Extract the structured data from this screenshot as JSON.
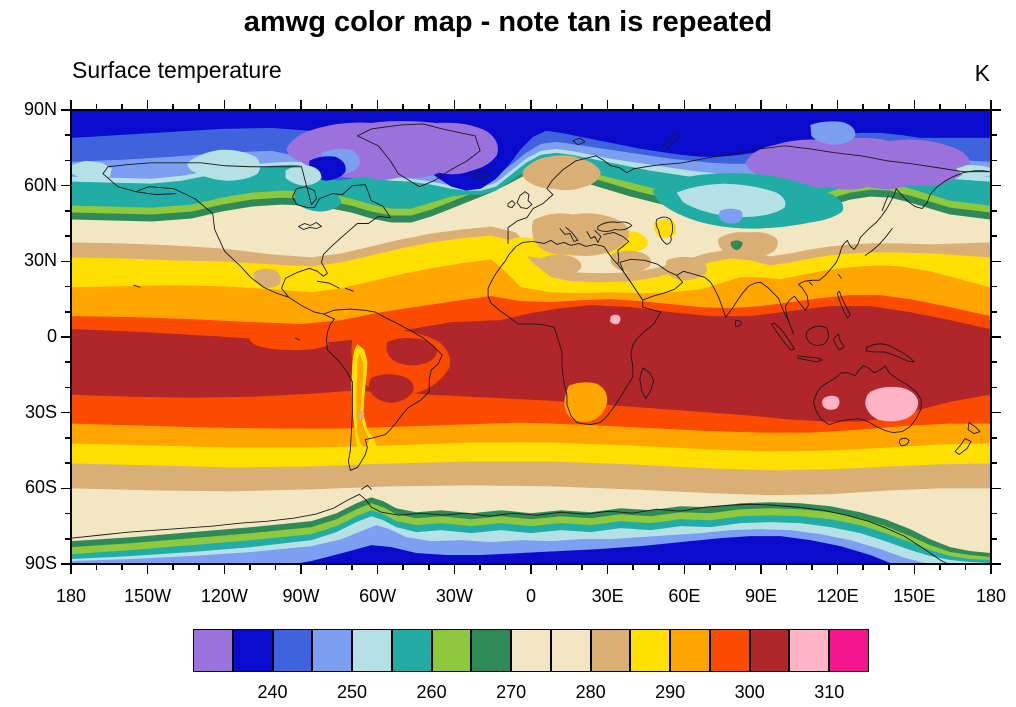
{
  "title": "amwg color map - note tan is repeated",
  "field_label": "Surface temperature",
  "units_label": "K",
  "chart_data": {
    "type": "heatmap",
    "subtype": "filled-contour world map (cylindrical equidistant, NCL style)",
    "title": "amwg color map - note tan is repeated",
    "field_label": "Surface temperature",
    "units": "K",
    "grid": "off",
    "x_axis": {
      "label_ticks": [
        "180",
        "150W",
        "120W",
        "90W",
        "60W",
        "30W",
        "0",
        "30E",
        "60E",
        "90E",
        "120E",
        "150E",
        "180"
      ],
      "major_interval_deg": 30,
      "minor_interval_deg": 10,
      "range_deg": [
        -180,
        180
      ]
    },
    "y_axis": {
      "label_ticks": [
        "90N",
        "60N",
        "30N",
        "0",
        "30S",
        "60S",
        "90S"
      ],
      "major_interval_deg": 30,
      "minor_interval_deg": 10,
      "range_deg": [
        -90,
        90
      ]
    },
    "colorbar": {
      "position": "bottom",
      "n_boxes": 17,
      "colors": [
        "#9B72DC",
        "#0B0BCE",
        "#3E63DD",
        "#7C9FF1",
        "#B5E1E6",
        "#21ACA5",
        "#8EC83C",
        "#2E8B57",
        "#F3E7C3",
        "#F3E7C3",
        "#D9AF76",
        "#FFDF00",
        "#FFA500",
        "#FA4B00",
        "#B0262B",
        "#FFB5C5",
        "#F3168F"
      ],
      "level_boundaries_k": [
        235,
        240,
        245,
        250,
        255,
        260,
        265,
        270,
        275,
        280,
        285,
        290,
        295,
        300,
        305,
        310
      ],
      "tick_labels": [
        "240",
        "250",
        "260",
        "270",
        "280",
        "290",
        "300",
        "310"
      ],
      "note": "tan/cream color is repeated for the 270-275 K and 275-280 K boxes"
    },
    "zonal_mean_surface_temperature_k": {
      "lat_deg": [
        90,
        80,
        70,
        60,
        50,
        40,
        30,
        20,
        10,
        0,
        -10,
        -20,
        -30,
        -40,
        -50,
        -60,
        -70,
        -80,
        -90
      ],
      "value_k": [
        237,
        240,
        247,
        257,
        268,
        278,
        288,
        294,
        300,
        303,
        302,
        298,
        292,
        284,
        276,
        271,
        257,
        242,
        237
      ]
    },
    "features": [
      {
        "name": "hot spot central Australia",
        "range_k": "305-310",
        "color": "pink"
      },
      {
        "name": "hot spot western Australia",
        "range_k": "305-310",
        "color": "pink"
      },
      {
        "name": "hot spot South Sudan / East Africa",
        "range_k": "305-310",
        "color": "pink"
      },
      {
        "name": "equatorial belt (Amazon, Congo, Maritime Continent)",
        "range_k": "300-305",
        "color": "dark red"
      },
      {
        "name": "cold patch Greenland - Canadian Arctic",
        "range_k": "< 235",
        "color": "purple"
      },
      {
        "name": "cold patch northeast Siberia",
        "range_k": "< 235",
        "color": "purple"
      },
      {
        "name": "Antarctic interior",
        "range_k": "235-245",
        "color": "dark blue / royal blue"
      },
      {
        "name": "Andes cool stripe along western South America",
        "range_k": "285-295"
      },
      {
        "name": "Sahara / Arabia cream with tan patches",
        "range_k": "270-285"
      },
      {
        "name": "Mediterranean warm band",
        "range_k": "285-290",
        "color": "yellow"
      },
      {
        "name": "cold pocket central Siberia / Mongolia",
        "range_k": "245-260",
        "color": "teal / pale cyan"
      }
    ]
  }
}
